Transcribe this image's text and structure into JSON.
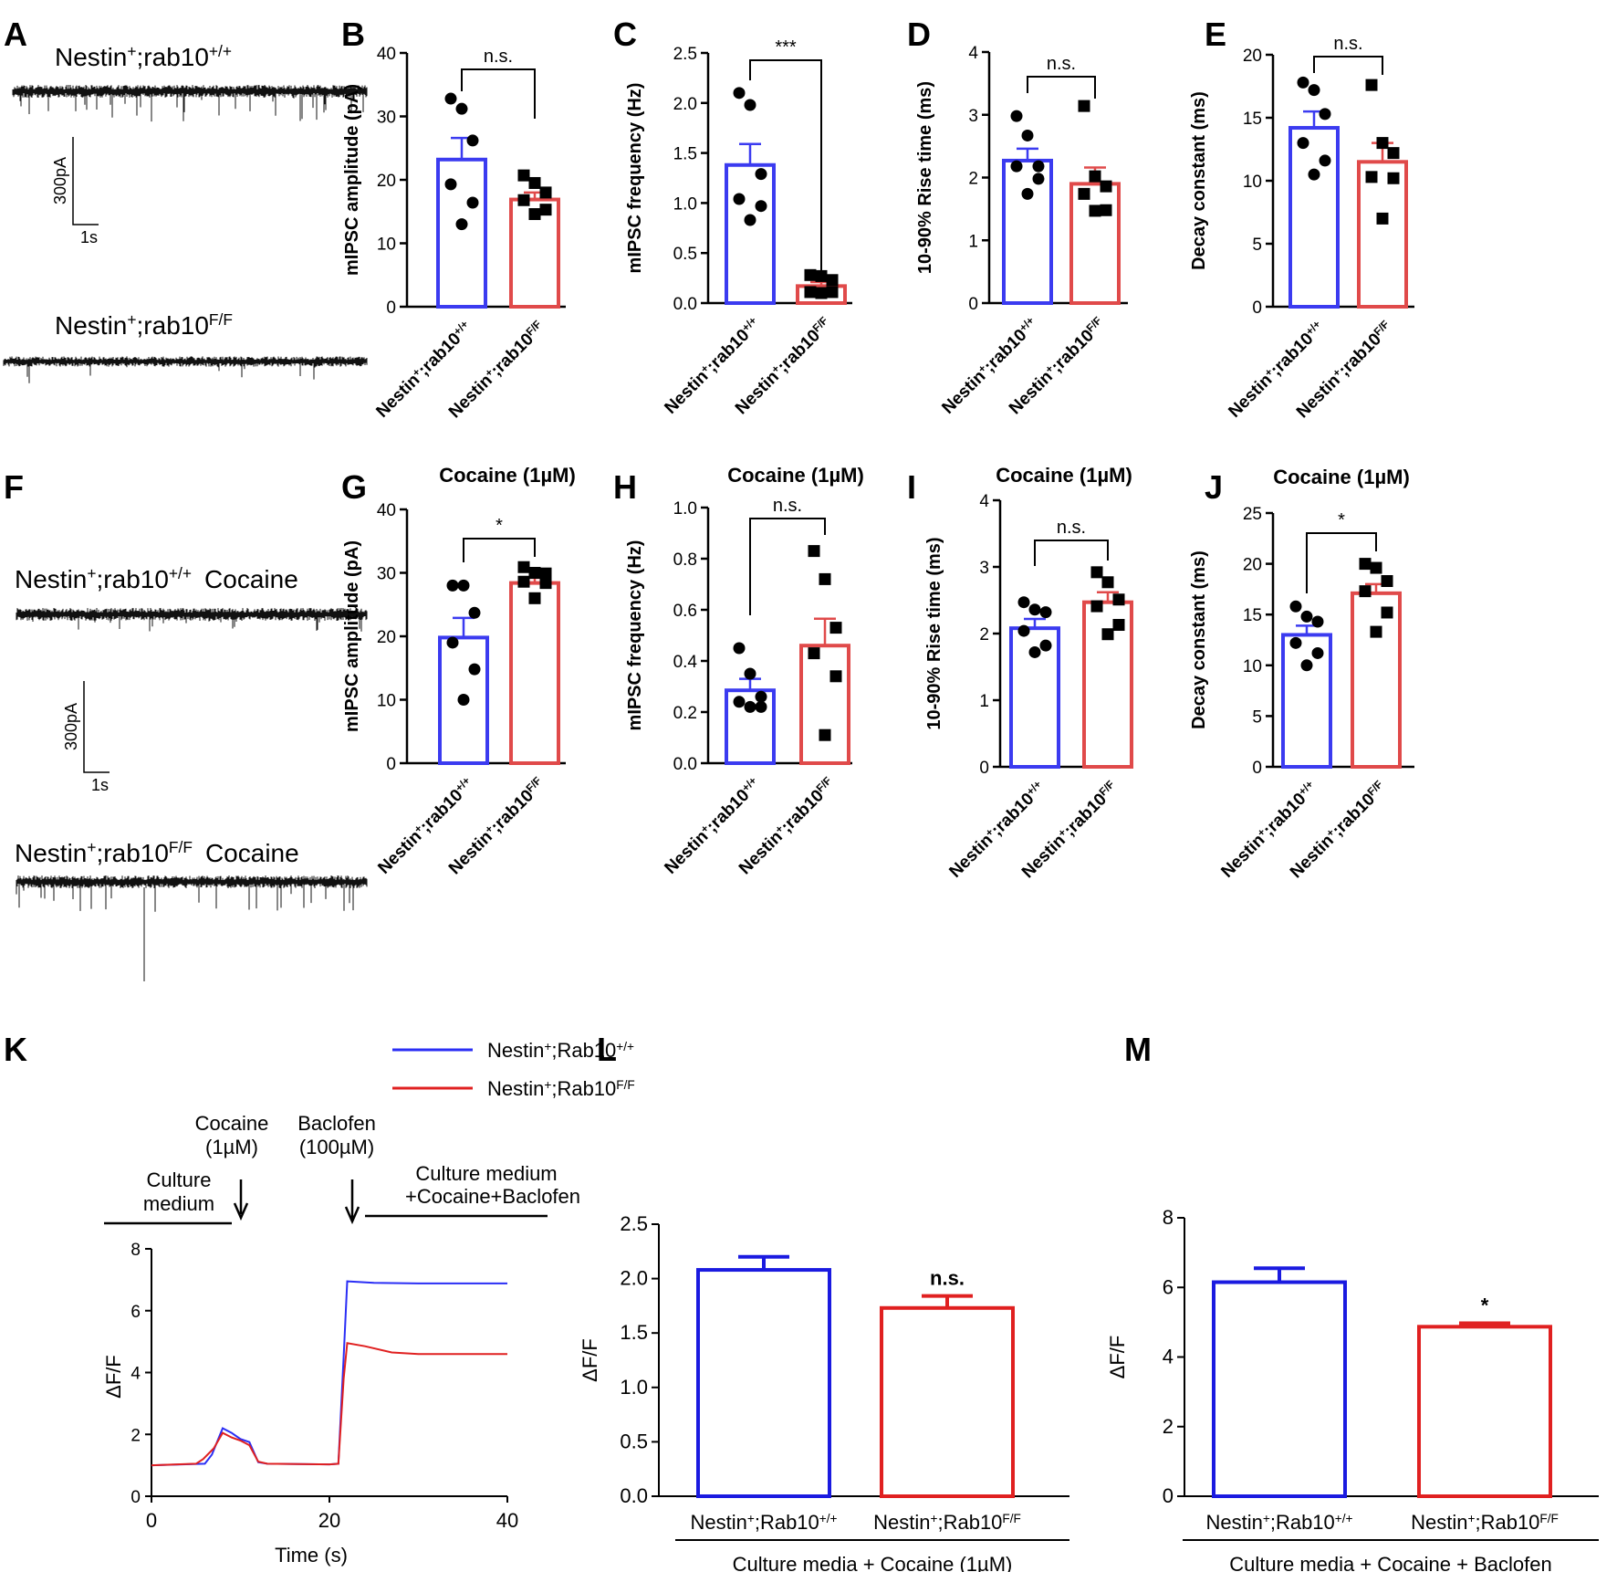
{
  "panel_labels": [
    "A",
    "B",
    "C",
    "D",
    "E",
    "F",
    "G",
    "H",
    "I",
    "J",
    "K",
    "L",
    "M"
  ],
  "traces": {
    "A_top": {
      "label": "Nestin",
      "sup1": "+",
      "mid": ";rab10",
      "sup2": "+/+",
      "suffix": ""
    },
    "A_bottom": {
      "label": "Nestin",
      "sup1": "+",
      "mid": ";rab10",
      "sup2": "F/F",
      "suffix": ""
    },
    "F_top": {
      "label": "Nestin",
      "sup1": "+",
      "mid": ";rab10",
      "sup2": "+/+",
      "suffix": "Cocaine"
    },
    "F_bottom": {
      "label": "Nestin",
      "sup1": "+",
      "mid": ";rab10",
      "sup2": "F/F",
      "suffix": "Cocaine"
    },
    "scale_A": {
      "y": "300pA",
      "x": "1s"
    },
    "scale_F": {
      "y": "300pA",
      "x": "1s"
    }
  },
  "groups": {
    "wt": {
      "base": "Nestin",
      "sup1": "+",
      "mid": ";rab10",
      "sup2": "+/+"
    },
    "ko": {
      "base": "Nestin",
      "sup1": "+",
      "mid": ";rab10",
      "sup2": "F/F"
    }
  },
  "legend": {
    "items": [
      {
        "base": "Nestin",
        "sup1": "+",
        "mid": ";Rab10",
        "sup2": "+/+",
        "color": "#2a2ef5"
      },
      {
        "base": "Nestin",
        "sup1": "+",
        "mid": ";Rab10",
        "sup2": "F/F",
        "color": "#e02020"
      }
    ]
  },
  "chart_data": [
    {
      "id": "B",
      "type": "bar",
      "title": "",
      "ylabel": "mIPSC amplitude (pA)",
      "ylim": [
        0,
        40
      ],
      "yticks": [
        0,
        10,
        20,
        30,
        40
      ],
      "sig": "n.s.",
      "series": [
        {
          "name": "Nestin+;rab10+/+",
          "mean": 23.2,
          "sem": 3.4,
          "color": "#3b3bf0",
          "points": [
            32.8,
            31.2,
            26.2,
            19.3,
            16.4,
            13.0
          ],
          "marker": "circle"
        },
        {
          "name": "Nestin+;rab10F/F",
          "mean": 16.9,
          "sem": 1.1,
          "color": "#e04a4a",
          "points": [
            20.7,
            19.5,
            18.0,
            16.8,
            15.3,
            14.6
          ],
          "marker": "square"
        }
      ]
    },
    {
      "id": "C",
      "type": "bar",
      "title": "",
      "ylabel": "mIPSC frequency (Hz)",
      "ylim": [
        0,
        2.5
      ],
      "yticks": [
        0.0,
        0.5,
        1.0,
        1.5,
        2.0,
        2.5
      ],
      "sig": "***",
      "series": [
        {
          "name": "Nestin+;rab10+/+",
          "mean": 1.38,
          "sem": 0.21,
          "color": "#3b3bf0",
          "points": [
            2.1,
            1.98,
            1.29,
            1.04,
            0.97,
            0.83
          ],
          "marker": "circle"
        },
        {
          "name": "Nestin+;rab10F/F",
          "mean": 0.17,
          "sem": 0.04,
          "color": "#e04a4a",
          "points": [
            0.28,
            0.27,
            0.23,
            0.11,
            0.11,
            0.1
          ],
          "marker": "square"
        }
      ]
    },
    {
      "id": "D",
      "type": "bar",
      "title": "",
      "ylabel": "10-90% Rise time (ms)",
      "ylim": [
        0,
        4
      ],
      "yticks": [
        0,
        1,
        2,
        3,
        4
      ],
      "sig": "n.s.",
      "series": [
        {
          "name": "Nestin+;rab10+/+",
          "mean": 2.27,
          "sem": 0.19,
          "color": "#3b3bf0",
          "points": [
            2.98,
            2.67,
            2.18,
            2.18,
            1.98,
            1.74
          ],
          "marker": "circle"
        },
        {
          "name": "Nestin+;rab10F/F",
          "mean": 1.9,
          "sem": 0.26,
          "color": "#e04a4a",
          "points": [
            3.14,
            2.02,
            1.86,
            1.74,
            1.48,
            1.47
          ],
          "marker": "square"
        }
      ]
    },
    {
      "id": "E",
      "type": "bar",
      "title": "",
      "ylabel": "Decay constant (ms)",
      "ylim": [
        0,
        20
      ],
      "yticks": [
        0,
        5,
        10,
        15,
        20
      ],
      "sig": "n.s.",
      "series": [
        {
          "name": "Nestin+;rab10+/+",
          "mean": 14.2,
          "sem": 1.3,
          "color": "#3b3bf0",
          "points": [
            17.8,
            17.2,
            15.3,
            13.0,
            11.6,
            10.5
          ],
          "marker": "circle"
        },
        {
          "name": "Nestin+;rab10F/F",
          "mean": 11.5,
          "sem": 1.5,
          "color": "#e04a4a",
          "points": [
            17.6,
            13.0,
            12.2,
            10.3,
            10.2,
            7.0
          ],
          "marker": "square"
        }
      ]
    },
    {
      "id": "G",
      "type": "bar",
      "title": "Cocaine (1µM)",
      "ylabel": "mIPSC amplitude (pA)",
      "ylim": [
        0,
        40
      ],
      "yticks": [
        0,
        10,
        20,
        30,
        40
      ],
      "sig": "*",
      "series": [
        {
          "name": "Nestin+;rab10+/+",
          "mean": 19.8,
          "sem": 3.1,
          "color": "#3b3bf0",
          "points": [
            28.0,
            28.0,
            23.7,
            19.0,
            14.8,
            10.0
          ],
          "marker": "circle"
        },
        {
          "name": "Nestin+;rab10F/F",
          "mean": 28.4,
          "sem": 0.8,
          "color": "#e04a4a",
          "points": [
            30.9,
            30.0,
            29.9,
            28.6,
            28.4,
            26.0
          ],
          "marker": "square"
        }
      ]
    },
    {
      "id": "H",
      "type": "bar",
      "title": "Cocaine (1µM)",
      "ylabel": "mIPSC frequency (Hz)",
      "ylim": [
        0,
        1.0
      ],
      "yticks": [
        0.0,
        0.2,
        0.4,
        0.6,
        0.8,
        1.0
      ],
      "sig": "n.s.",
      "series": [
        {
          "name": "Nestin+;rab10+/+",
          "mean": 0.285,
          "sem": 0.045,
          "color": "#3b3bf0",
          "points": [
            0.45,
            0.35,
            0.26,
            0.24,
            0.22,
            0.22
          ],
          "marker": "circle"
        },
        {
          "name": "Nestin+;rab10F/F",
          "mean": 0.46,
          "sem": 0.105,
          "color": "#e04a4a",
          "points": [
            0.83,
            0.72,
            0.53,
            0.43,
            0.34,
            0.11
          ],
          "marker": "square"
        }
      ]
    },
    {
      "id": "I",
      "type": "bar",
      "title": "Cocaine (1µM)",
      "ylabel": "10-90% Rise time (ms)",
      "ylim": [
        0,
        4
      ],
      "yticks": [
        0,
        1,
        2,
        3,
        4
      ],
      "sig": "n.s.",
      "series": [
        {
          "name": "Nestin+;rab10+/+",
          "mean": 2.08,
          "sem": 0.14,
          "color": "#3b3bf0",
          "points": [
            2.47,
            2.36,
            2.32,
            2.04,
            1.82,
            1.72
          ],
          "marker": "circle"
        },
        {
          "name": "Nestin+;rab10F/F",
          "mean": 2.47,
          "sem": 0.15,
          "color": "#e04a4a",
          "points": [
            2.92,
            2.77,
            2.51,
            2.41,
            2.13,
            1.99
          ],
          "marker": "square"
        }
      ]
    },
    {
      "id": "J",
      "type": "bar",
      "title": "Cocaine (1µM)",
      "ylabel": "Decay constant (ms)",
      "ylim": [
        0,
        25
      ],
      "yticks": [
        0,
        5,
        10,
        15,
        20,
        25
      ],
      "sig": "*",
      "series": [
        {
          "name": "Nestin+;rab10+/+",
          "mean": 13.0,
          "sem": 0.9,
          "color": "#3b3bf0",
          "points": [
            15.8,
            14.8,
            14.3,
            12.2,
            11.2,
            10.0
          ],
          "marker": "circle"
        },
        {
          "name": "Nestin+;rab10F/F",
          "mean": 17.1,
          "sem": 0.9,
          "color": "#e04a4a",
          "points": [
            20.0,
            19.6,
            18.3,
            17.3,
            15.2,
            13.3
          ],
          "marker": "square"
        }
      ]
    },
    {
      "id": "K",
      "type": "line",
      "title": "",
      "ylabel": "ΔF/F",
      "xlabel": "Time (s)",
      "xlim": [
        0,
        40
      ],
      "ylim": [
        0,
        8
      ],
      "xticks": [
        0,
        20,
        40
      ],
      "yticks": [
        0,
        2,
        4,
        6,
        8
      ],
      "annotations": {
        "culture": [
          "Culture",
          "medium"
        ],
        "cocaine": [
          "Cocaine",
          "(1µM)"
        ],
        "baclofen": [
          "Baclofen",
          "(100µM)"
        ],
        "mixture": [
          "Culture medium",
          "+Cocaine+Baclofen"
        ]
      },
      "series": [
        {
          "name": "Nestin+;Rab10+/+",
          "color": "#2a2ef5",
          "x": [
            0,
            6,
            6.8,
            8,
            9,
            10,
            11,
            12,
            13,
            20,
            21,
            21.6,
            22,
            25,
            30,
            35,
            40
          ],
          "y": [
            1.0,
            1.05,
            1.35,
            2.2,
            2.05,
            1.85,
            1.75,
            1.1,
            1.05,
            1.03,
            1.05,
            4.5,
            6.95,
            6.9,
            6.88,
            6.88,
            6.88
          ]
        },
        {
          "name": "Nestin+;Rab10F/F",
          "color": "#e02020",
          "x": [
            0,
            5,
            5.8,
            7,
            8,
            9,
            10,
            11,
            12,
            13,
            20,
            21,
            21.6,
            22,
            24,
            27,
            30,
            35,
            40
          ],
          "y": [
            1.0,
            1.05,
            1.2,
            1.55,
            2.05,
            1.9,
            1.8,
            1.65,
            1.12,
            1.05,
            1.03,
            1.05,
            3.8,
            4.95,
            4.85,
            4.65,
            4.6,
            4.6,
            4.6
          ]
        }
      ]
    },
    {
      "id": "L",
      "type": "bar",
      "title": "",
      "ylabel": "ΔF/F",
      "ylim": [
        0,
        2.5
      ],
      "yticks": [
        0.0,
        0.5,
        1.0,
        1.5,
        2.0,
        2.5
      ],
      "sig": "n.s.",
      "footer": "Culture media + Cocaine (1µM)",
      "series": [
        {
          "name": "Nestin+;Rab10+/+",
          "mean": 2.08,
          "sem": 0.12,
          "color": "#1a1ae0"
        },
        {
          "name": "Nestin+;Rab10F/F",
          "mean": 1.73,
          "sem": 0.11,
          "color": "#e02020"
        }
      ]
    },
    {
      "id": "M",
      "type": "bar",
      "title": "",
      "ylabel": "ΔF/F",
      "ylim": [
        0,
        8
      ],
      "yticks": [
        0,
        2,
        4,
        6,
        8
      ],
      "sig": "*",
      "footer": "Culture media + Cocaine + Baclofen",
      "series": [
        {
          "name": "Nestin+;Rab10+/+",
          "mean": 6.15,
          "sem": 0.4,
          "color": "#1a1ae0"
        },
        {
          "name": "Nestin+;Rab10F/F",
          "mean": 4.87,
          "sem": 0.1,
          "color": "#e02020"
        }
      ]
    }
  ]
}
